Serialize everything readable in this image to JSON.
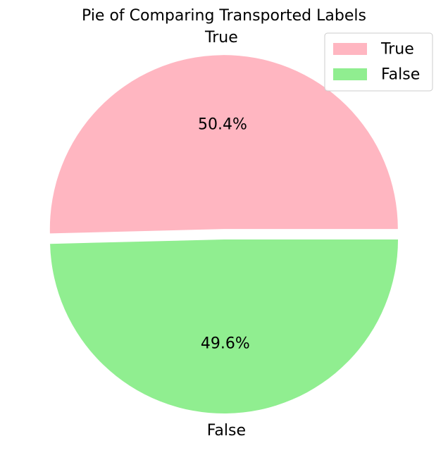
{
  "chart_data": {
    "type": "pie",
    "title": "Pie of Comparing Transported Labels",
    "slices": [
      {
        "label": "True",
        "value": 50.4,
        "pct_label": "50.4%",
        "color": "#ffb6c1",
        "exploded": true
      },
      {
        "label": "False",
        "value": 49.6,
        "pct_label": "49.6%",
        "color": "#90ee90",
        "exploded": false
      }
    ],
    "legend": {
      "placement": "top-right",
      "entries": [
        {
          "label": "True",
          "color": "#ffb6c1"
        },
        {
          "label": "False",
          "color": "#90ee90"
        }
      ]
    }
  }
}
